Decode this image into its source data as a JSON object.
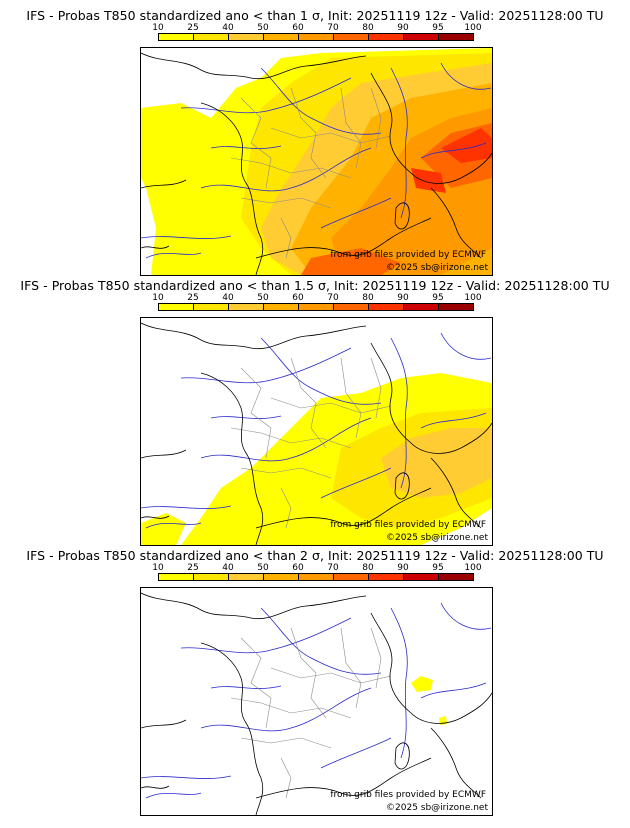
{
  "colorbar": {
    "ticks": [
      "10",
      "25",
      "40",
      "50",
      "60",
      "70",
      "80",
      "90",
      "95",
      "100"
    ],
    "colors": [
      "#ffff00",
      "#ffe600",
      "#ffcc33",
      "#ffb300",
      "#ff9900",
      "#ff6600",
      "#ff3300",
      "#cc0000",
      "#990000",
      "#660000"
    ]
  },
  "panels": [
    {
      "title": "IFS - Probas T850  standardized ano < than 1 σ, Init: 20251119 12z - Valid: 20251128:00 TU",
      "credit_source": "from grib files provided by ECMWF",
      "credit_copyright": "©2025 sb@irizone.net"
    },
    {
      "title": "IFS - Probas T850  standardized ano < than 1.5 σ, Init: 20251119 12z - Valid: 20251128:00 TU",
      "credit_source": "from grib files provided by ECMWF",
      "credit_copyright": "©2025 sb@irizone.net"
    },
    {
      "title": "IFS - Probas T850  standardized ano < than 2 σ, Init: 20251119 12z - Valid: 20251128:00 TU",
      "credit_source": "from grib files provided by ECMWF",
      "credit_copyright": "©2025 sb@irizone.net"
    }
  ]
}
